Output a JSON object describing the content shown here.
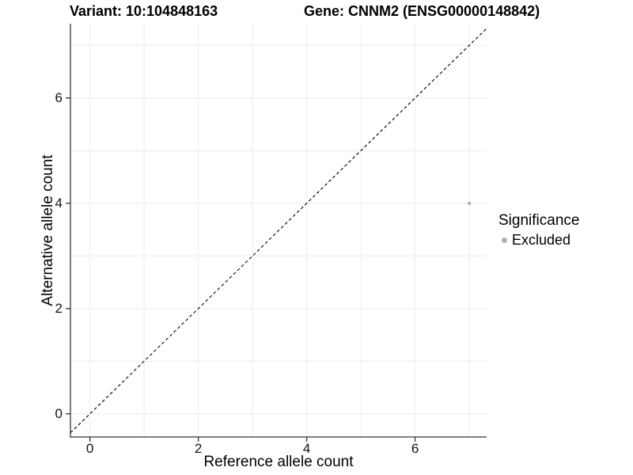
{
  "chart_data": {
    "type": "scatter",
    "title_left": "Variant: 10:104848163",
    "title_right": "Gene: CNNM2 (ENSG00000148842)",
    "xlabel": "Reference allele count",
    "ylabel": "Alternative allele count",
    "x_ticks": [
      0,
      2,
      4,
      6
    ],
    "y_ticks": [
      0,
      2,
      4,
      6
    ],
    "xlim": [
      -0.36,
      7.32
    ],
    "ylim": [
      -0.44,
      7.41
    ],
    "grid": {
      "x_values": [
        0,
        1,
        2,
        3,
        4,
        5,
        6,
        7
      ],
      "y_values": [
        0,
        1,
        2,
        3,
        4,
        5,
        6,
        7
      ]
    },
    "points": [
      {
        "x": 7,
        "y": 4,
        "significance": "Excluded"
      }
    ],
    "identity_line": {
      "slope": 1,
      "intercept": 0,
      "style": "dashed"
    },
    "legend": {
      "title": "Significance",
      "position": "right",
      "items": [
        {
          "label": "Excluded",
          "color": "#b0b0b0"
        }
      ]
    },
    "colors": {
      "point": "#b0b0b0",
      "grid": "#ececec",
      "axis": "#333333",
      "dashed_line": "#000000",
      "text": "#000000"
    }
  }
}
